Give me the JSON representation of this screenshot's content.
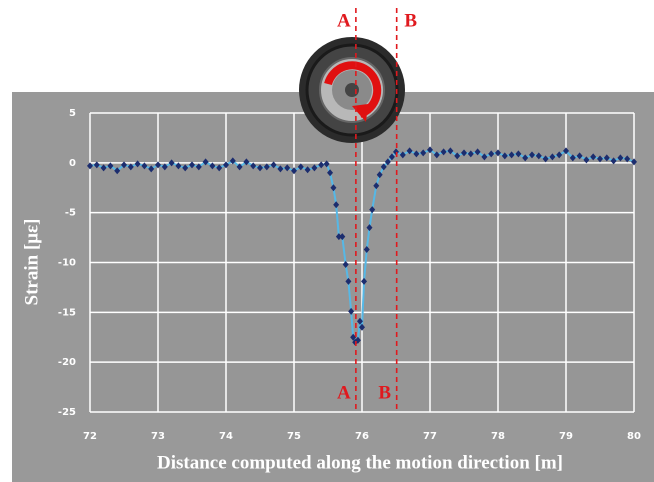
{
  "chart_data": {
    "type": "line",
    "xlabel": "Distance computed along the motion direction [m]",
    "ylabel": "Strain [με]",
    "xlim": [
      72,
      80
    ],
    "ylim": [
      -25,
      5
    ],
    "xticks": [
      72,
      73,
      74,
      75,
      76,
      77,
      78,
      79,
      80
    ],
    "yticks": [
      -25,
      -20,
      -15,
      -10,
      -5,
      0,
      5
    ],
    "grid": true,
    "series": [
      {
        "line_color": "#56b8e6",
        "color": "#1c2d6e",
        "x": [
          72.0,
          72.1,
          72.2,
          72.3,
          72.4,
          72.5,
          72.6,
          72.7,
          72.8,
          72.9,
          73.0,
          73.1,
          73.2,
          73.3,
          73.4,
          73.5,
          73.6,
          73.7,
          73.8,
          73.9,
          74.0,
          74.1,
          74.2,
          74.3,
          74.4,
          74.5,
          74.6,
          74.7,
          74.8,
          74.9,
          75.0,
          75.1,
          75.2,
          75.3,
          75.4,
          75.48,
          75.53,
          75.58,
          75.62,
          75.66,
          75.71,
          75.76,
          75.8,
          75.84,
          75.87,
          75.9,
          75.94,
          75.97,
          76.0,
          76.03,
          76.07,
          76.11,
          76.15,
          76.21,
          76.26,
          76.32,
          76.38,
          76.44,
          76.5,
          76.6,
          76.7,
          76.8,
          76.9,
          77.0,
          77.1,
          77.2,
          77.3,
          77.4,
          77.5,
          77.6,
          77.7,
          77.8,
          77.9,
          78.0,
          78.1,
          78.2,
          78.3,
          78.4,
          78.5,
          78.6,
          78.7,
          78.8,
          78.9,
          79.0,
          79.1,
          79.2,
          79.3,
          79.4,
          79.5,
          79.6,
          79.7,
          79.8,
          79.9,
          80.0
        ],
        "values": [
          -0.3,
          -0.2,
          -0.5,
          -0.3,
          -0.8,
          -0.2,
          -0.4,
          -0.1,
          -0.3,
          -0.6,
          -0.2,
          -0.4,
          0.0,
          -0.3,
          -0.5,
          -0.2,
          -0.4,
          0.1,
          -0.3,
          -0.5,
          -0.2,
          0.2,
          -0.4,
          0.1,
          -0.3,
          -0.5,
          -0.4,
          -0.2,
          -0.6,
          -0.5,
          -0.8,
          -0.4,
          -0.7,
          -0.5,
          -0.2,
          -0.1,
          -1.0,
          -2.5,
          -4.2,
          -7.4,
          -7.4,
          -10.2,
          -11.9,
          -14.9,
          -17.5,
          -18.0,
          -17.8,
          -15.9,
          -16.5,
          -11.9,
          -8.7,
          -6.5,
          -4.7,
          -2.3,
          -1.2,
          -0.4,
          0.1,
          0.6,
          1.1,
          0.8,
          1.2,
          0.9,
          1.0,
          1.3,
          0.8,
          1.1,
          1.2,
          0.7,
          1.0,
          0.9,
          1.1,
          0.6,
          0.9,
          1.0,
          0.7,
          0.8,
          0.9,
          0.5,
          0.8,
          0.7,
          0.4,
          0.6,
          0.8,
          1.2,
          0.5,
          0.7,
          0.3,
          0.6,
          0.4,
          0.5,
          0.2,
          0.5,
          0.4,
          0.1
        ]
      }
    ],
    "annotations": [
      {
        "label": "A",
        "x": 75.91
      },
      {
        "label": "B",
        "x": 76.51
      }
    ]
  }
}
